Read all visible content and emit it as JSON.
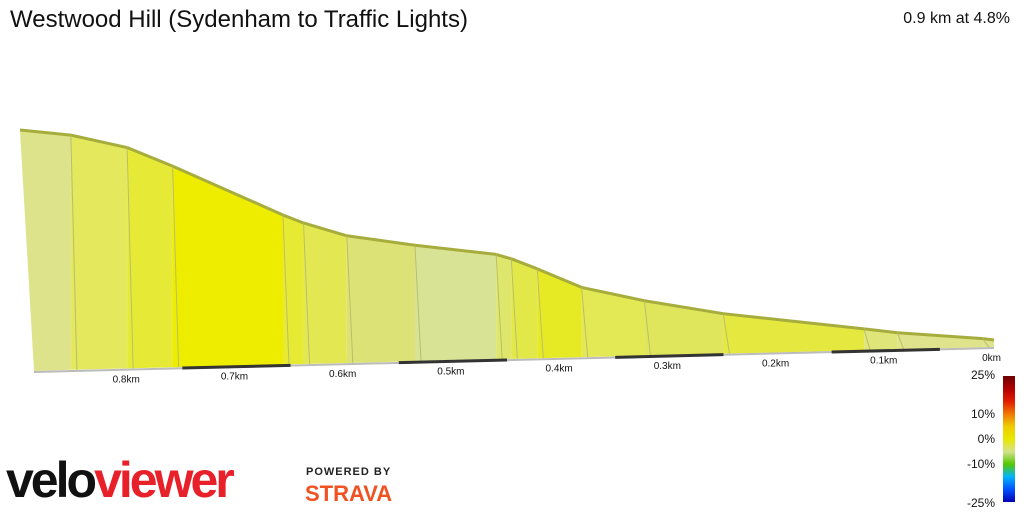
{
  "header": {
    "title": "Westwood Hill (Sydenham to Traffic Lights)",
    "summary": "0.9 km at 4.8%"
  },
  "branding": {
    "logo_part1": "velo",
    "logo_part2": "viewer",
    "powered_by": "POWERED BY",
    "strava": "STRAVA"
  },
  "chart_data": {
    "type": "area",
    "title": "Westwood Hill (Sydenham to Traffic Lights)",
    "subtitle": "0.9 km at 4.8%",
    "x_direction": "reversed",
    "x_unit": "km",
    "xlim": [
      0,
      0.9
    ],
    "distance_ticks": [
      {
        "km": 0.8,
        "label": "0.8km"
      },
      {
        "km": 0.7,
        "label": "0.7km"
      },
      {
        "km": 0.6,
        "label": "0.6km"
      },
      {
        "km": 0.5,
        "label": "0.5km"
      },
      {
        "km": 0.4,
        "label": "0.4km"
      },
      {
        "km": 0.3,
        "label": "0.3km"
      },
      {
        "km": 0.2,
        "label": "0.2km"
      },
      {
        "km": 0.1,
        "label": "0.1km"
      },
      {
        "km": 0.0,
        "label": "0km"
      }
    ],
    "profile": [
      {
        "km": 0.9,
        "elev": 43.0
      },
      {
        "km": 0.853,
        "elev": 41.8
      },
      {
        "km": 0.801,
        "elev": 39.2
      },
      {
        "km": 0.759,
        "elev": 35.5
      },
      {
        "km": 0.657,
        "elev": 25.8
      },
      {
        "km": 0.638,
        "elev": 24.2
      },
      {
        "km": 0.598,
        "elev": 21.6
      },
      {
        "km": 0.535,
        "elev": 19.5
      },
      {
        "km": 0.46,
        "elev": 17.4
      },
      {
        "km": 0.446,
        "elev": 16.5
      },
      {
        "km": 0.422,
        "elev": 14.5
      },
      {
        "km": 0.381,
        "elev": 10.8
      },
      {
        "km": 0.323,
        "elev": 8.0
      },
      {
        "km": 0.25,
        "elev": 5.2
      },
      {
        "km": 0.12,
        "elev": 1.7
      },
      {
        "km": 0.089,
        "elev": 0.8
      },
      {
        "km": 0.01,
        "elev": -0.7
      },
      {
        "km": 0.0,
        "elev": -1.0
      }
    ],
    "segment_colors": [
      "#dde38a",
      "#e3e85c",
      "#e6ea37",
      "#eeed00",
      "#e6ea33",
      "#e3e852",
      "#dde276",
      "#d9e396",
      "#dfe66c",
      "#e3e849",
      "#e6ea24",
      "#e3e855",
      "#e0e65c",
      "#e5e93f",
      "#e0e57a",
      "#dfe38b",
      "#e0e48e"
    ],
    "gradient_legend": {
      "labels": [
        "25%",
        "10%",
        "0%",
        "-10%",
        "-25%"
      ],
      "values": [
        25,
        10,
        0,
        -10,
        -25
      ],
      "colors": [
        "#6e0000",
        "#b00000",
        "#e11b00",
        "#f07800",
        "#eecc00",
        "#e8e800",
        "#d4e28c",
        "#55c800",
        "#00b4ff",
        "#0050ff",
        "#0000b4"
      ]
    }
  }
}
